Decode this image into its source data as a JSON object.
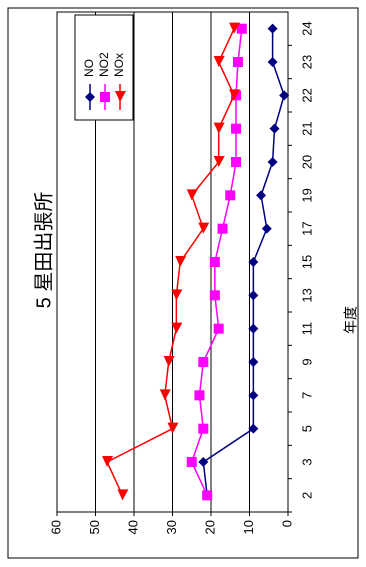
{
  "chart_data": {
    "type": "line",
    "title": "5 星田出張所",
    "x_label": "年度",
    "categories": [
      "2",
      "3",
      "5",
      "7",
      "9",
      "11",
      "13",
      "15",
      "17",
      "19",
      "20",
      "21",
      "22",
      "23",
      "24"
    ],
    "series": [
      {
        "name": "NO",
        "color": "#000080",
        "marker": "diamond",
        "values": [
          21,
          22,
          9,
          9,
          9,
          9,
          9,
          9,
          5.5,
          7,
          4,
          3.5,
          1,
          4,
          4
        ]
      },
      {
        "name": "NO2",
        "color": "#ff00ff",
        "marker": "square",
        "values": [
          21,
          25,
          22,
          23,
          22,
          18,
          19,
          19,
          17,
          15,
          13.5,
          13.5,
          13.5,
          13,
          12
        ]
      },
      {
        "name": "NOx",
        "color": "#ff0000",
        "marker": "triangle",
        "values": [
          43,
          47,
          30,
          32,
          31,
          29,
          29,
          28,
          22,
          25,
          18,
          18,
          14,
          18,
          14
        ]
      }
    ],
    "ylim": [
      0,
      60
    ],
    "yticks": [
      0,
      10,
      20,
      30,
      40,
      50,
      60
    ],
    "grid": true,
    "legend": "top-right"
  }
}
